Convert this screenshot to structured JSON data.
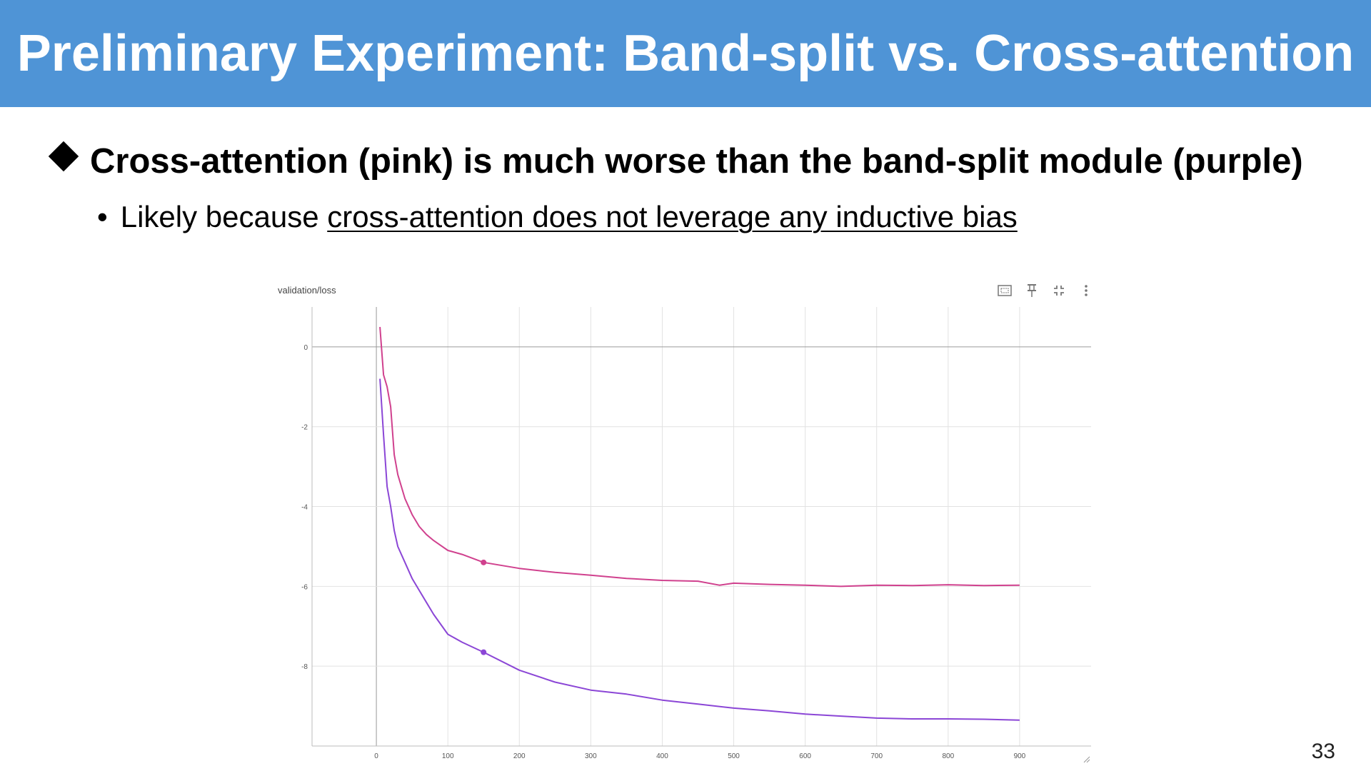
{
  "slide": {
    "title": "Preliminary Experiment: Band-split vs. Cross-attention",
    "bullet_main": "Cross-attention (pink) is much worse than the band-split module (purple)",
    "bullet_sub_prefix": "Likely because ",
    "bullet_sub_underlined": "cross-attention does not leverage any inductive bias",
    "page_number": "33"
  },
  "toolbar": {
    "icons": [
      "fullscreen-icon",
      "pin-icon",
      "collapse-icon",
      "more-vertical-icon"
    ]
  },
  "colors": {
    "header_bg": "#4f94d6",
    "pink_series": "#d0418e",
    "purple_series": "#8b46d6",
    "grid": "#e2e2e2"
  },
  "chart_data": {
    "type": "line",
    "title": "validation/loss",
    "xlabel": "",
    "ylabel": "",
    "xlim": [
      -90,
      1000
    ],
    "ylim": [
      -10.0,
      1.0
    ],
    "x_ticks": [
      0,
      100,
      200,
      300,
      400,
      500,
      600,
      700,
      800,
      900
    ],
    "x_tick_labels": [
      "0",
      "100",
      "200",
      "300",
      "400",
      "500",
      "600",
      "700",
      "800",
      "900"
    ],
    "y_ticks": [
      0,
      -2,
      -4,
      -6,
      -8
    ],
    "y_tick_labels": [
      "0",
      "-2",
      "-4",
      "-6",
      "-8"
    ],
    "grid": true,
    "series": [
      {
        "name": "cross-attention (pink)",
        "color": "#d0418e",
        "x": [
          5,
          10,
          15,
          20,
          25,
          30,
          40,
          50,
          60,
          70,
          80,
          100,
          120,
          150,
          200,
          250,
          300,
          350,
          400,
          450,
          480,
          500,
          550,
          600,
          650,
          700,
          750,
          800,
          850,
          900
        ],
        "y": [
          0.5,
          -0.7,
          -1.0,
          -1.5,
          -2.7,
          -3.2,
          -3.8,
          -4.2,
          -4.5,
          -4.7,
          -4.85,
          -5.1,
          -5.2,
          -5.4,
          -5.55,
          -5.65,
          -5.72,
          -5.8,
          -5.85,
          -5.87,
          -5.97,
          -5.92,
          -5.95,
          -5.97,
          -6.0,
          -5.97,
          -5.98,
          -5.96,
          -5.98,
          -5.97
        ],
        "marker": {
          "x": 150,
          "y": -5.4
        }
      },
      {
        "name": "band-split (purple)",
        "color": "#8b46d6",
        "x": [
          5,
          10,
          15,
          20,
          25,
          30,
          40,
          50,
          60,
          70,
          80,
          100,
          120,
          150,
          200,
          250,
          300,
          350,
          400,
          450,
          500,
          550,
          600,
          650,
          700,
          750,
          800,
          850,
          900
        ],
        "y": [
          -0.8,
          -2.2,
          -3.5,
          -4.0,
          -4.6,
          -5.0,
          -5.4,
          -5.8,
          -6.1,
          -6.4,
          -6.7,
          -7.2,
          -7.4,
          -7.65,
          -8.1,
          -8.4,
          -8.6,
          -8.7,
          -8.85,
          -8.95,
          -9.05,
          -9.12,
          -9.2,
          -9.25,
          -9.3,
          -9.32,
          -9.32,
          -9.33,
          -9.35
        ],
        "marker": {
          "x": 150,
          "y": -7.65
        }
      }
    ]
  }
}
